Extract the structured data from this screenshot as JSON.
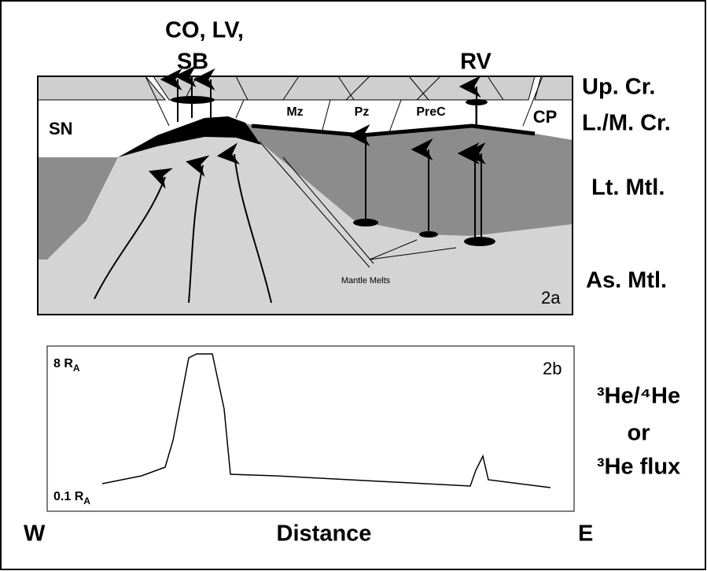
{
  "figure_2a": {
    "top_labels": [
      "CO, LV,",
      "SB",
      "RV"
    ],
    "layer_labels": [
      "Up. Cr.",
      "L./M. Cr.",
      "Lt. Mtl.",
      "As. Mtl."
    ],
    "region_labels": [
      "SN",
      "Mz",
      "Pz",
      "PreC",
      "CP"
    ],
    "annotation": "Mantle Melts",
    "panel": "2a"
  },
  "figure_2b": {
    "panel": "2b",
    "y_top": {
      "text": "8 R",
      "subscript": "A"
    },
    "y_bottom": {
      "text": "0.1 R",
      "subscript": "A"
    },
    "side_label": [
      "³He/⁴He",
      "or",
      "³He flux"
    ],
    "x_left": "W",
    "x_label": "Distance",
    "x_right": "E"
  }
}
